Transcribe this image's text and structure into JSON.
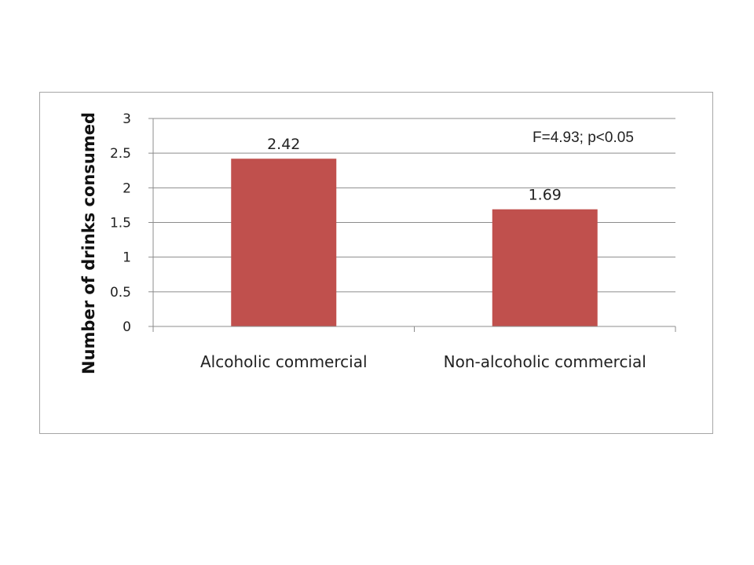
{
  "chart_data": {
    "type": "bar",
    "categories": [
      "Alcoholic commercial",
      "Non-alcoholic commercial"
    ],
    "values": [
      2.42,
      1.69
    ],
    "data_labels": [
      "2.42",
      "1.69"
    ],
    "title": "",
    "xlabel": "",
    "ylabel": "Number of drinks consumed",
    "ylim": [
      0,
      3
    ],
    "yticks": [
      0,
      0.5,
      1,
      1.5,
      2,
      2.5,
      3
    ],
    "ytick_labels": [
      "0",
      "0.5",
      "1",
      "1.5",
      "2",
      "2.5",
      "3"
    ],
    "grid": true,
    "legend": "none",
    "annotation": "F=4.93; p<0.05",
    "bar_color": "#c0504d",
    "grid_color": "#8c8c8c"
  }
}
